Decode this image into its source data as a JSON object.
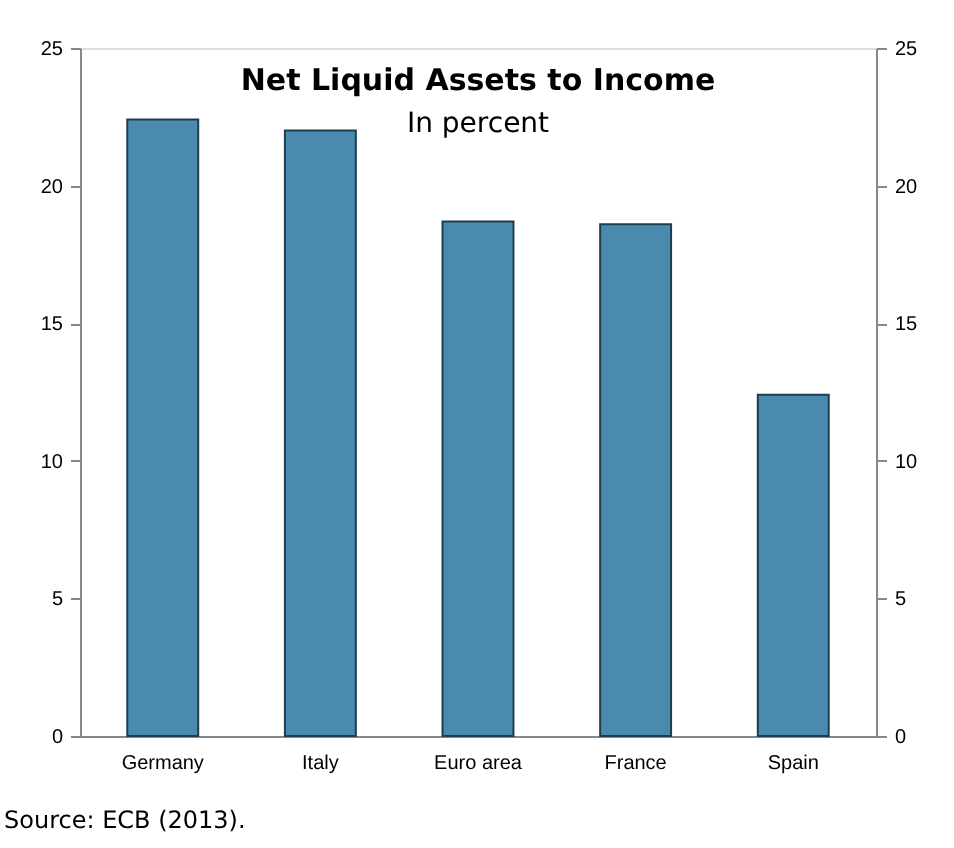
{
  "chart_data": {
    "type": "bar",
    "title": "Net Liquid Assets to Income",
    "subtitle": "In percent",
    "categories": [
      "Germany",
      "Italy",
      "Euro area",
      "France",
      "Spain"
    ],
    "values": [
      22.4,
      22.0,
      18.7,
      18.6,
      12.4
    ],
    "color": "#4a8bad",
    "ylim": [
      0,
      25
    ],
    "yticks": [
      0,
      5,
      10,
      15,
      20,
      25
    ],
    "y2lim": [
      0,
      25
    ],
    "y2ticks": [
      0,
      5,
      10,
      15,
      20,
      25
    ],
    "grid": false,
    "annotations": [
      "Source: ECB (2013)."
    ]
  }
}
